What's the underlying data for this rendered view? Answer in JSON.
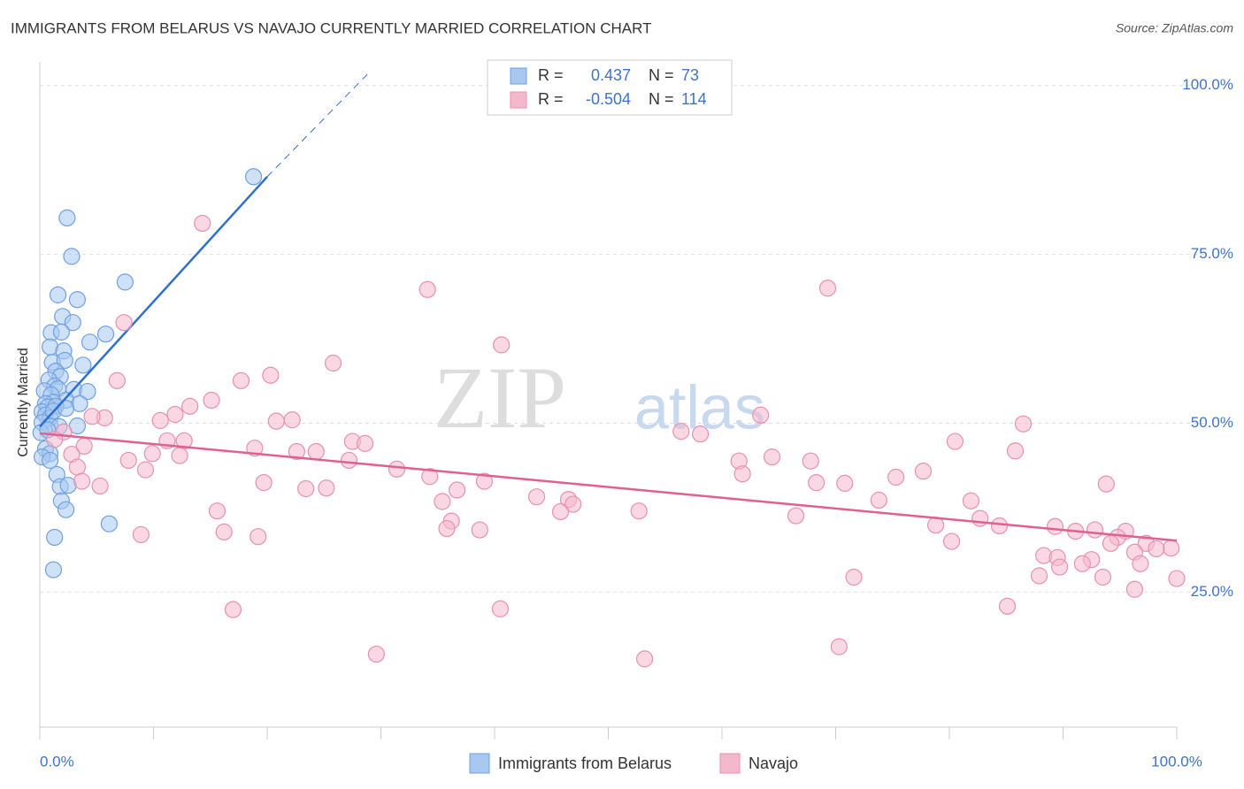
{
  "chart_data": {
    "type": "scatter",
    "title": "IMMIGRANTS FROM BELARUS VS NAVAJO CURRENTLY MARRIED CORRELATION CHART",
    "source": "Source: ZipAtlas.com",
    "watermark": [
      "ZIP",
      "atlas"
    ],
    "y_label": "Currently Married",
    "xlim": [
      0,
      100
    ],
    "ylim": [
      5,
      103.5
    ],
    "xticks": [
      {
        "value": 0,
        "label": "0.0%"
      },
      {
        "value": 100,
        "label": "100.0%"
      }
    ],
    "xminor": [
      10,
      20,
      30,
      40,
      50,
      60,
      70,
      80,
      90
    ],
    "yticks": [
      {
        "value": 25,
        "label": "25.0%"
      },
      {
        "value": 50,
        "label": "50.0%"
      },
      {
        "value": 75,
        "label": "75.0%"
      },
      {
        "value": 100,
        "label": "100.0%"
      }
    ],
    "grid": true,
    "stat_labels": {
      "r": "R =",
      "n": "N ="
    },
    "series": [
      {
        "name": "Immigrants from Belarus",
        "color": "#6fa0e0",
        "fill": "#a8c8f0",
        "line_color": "#2f6fd0",
        "r": 0.437,
        "n": 73,
        "trend": {
          "x": [
            0,
            20
          ],
          "y": [
            49.5,
            86.5
          ]
        },
        "trend_extension": {
          "x": [
            20,
            29
          ],
          "y": [
            86.5,
            102
          ]
        },
        "x": [
          18.8,
          2.4,
          2.8,
          7.5,
          1.6,
          3.3,
          2.0,
          2.9,
          1.0,
          1.9,
          5.8,
          4.4,
          0.9,
          2.1,
          1.1,
          2.2,
          3.8,
          1.4,
          1.8,
          0.8,
          1.3,
          1.6,
          0.4,
          1.0,
          3.0,
          4.2,
          2.3,
          1.2,
          0.5,
          0.7,
          1.4,
          3.5,
          0.2,
          0.5,
          0.9,
          0.2,
          0.9,
          3.3,
          0.1,
          0.5,
          0.9,
          0.2,
          0.9,
          1.5,
          1.8,
          2.5,
          1.9,
          2.3,
          6.1,
          1.3,
          1.2,
          1.7,
          1.2,
          2.3,
          0.7
        ],
        "values": [
          86.5,
          80.4,
          74.7,
          70.9,
          69.0,
          68.3,
          65.8,
          64.9,
          63.4,
          63.5,
          63.2,
          62.0,
          61.3,
          60.7,
          59.0,
          59.3,
          58.6,
          57.7,
          56.9,
          56.4,
          55.5,
          55.1,
          54.8,
          54.2,
          55.0,
          54.7,
          53.4,
          53.1,
          52.9,
          52.4,
          52.5,
          52.9,
          51.7,
          51.2,
          50.8,
          50.1,
          49.6,
          49.6,
          48.6,
          46.2,
          45.5,
          45.0,
          44.5,
          42.4,
          40.6,
          40.8,
          38.5,
          37.2,
          35.1,
          33.1,
          28.3,
          49.5,
          51.8,
          52.2,
          49.0
        ]
      },
      {
        "name": "Navajo",
        "color": "#e890b0",
        "fill": "#f4b8cc",
        "line_color": "#e06090",
        "r": -0.504,
        "n": 114,
        "trend": {
          "x": [
            0,
            100
          ],
          "y": [
            48.5,
            32.6
          ]
        },
        "x": [
          14.3,
          34.1,
          69.3,
          7.4,
          40.6,
          25.8,
          20.3,
          6.8,
          17.7,
          15.1,
          13.2,
          11.9,
          10.6,
          63.4,
          5.7,
          4.6,
          22.2,
          20.8,
          86.5,
          2.1,
          56.4,
          58.1,
          1.3,
          11.2,
          12.7,
          27.5,
          28.6,
          80.5,
          18.9,
          3.9,
          22.6,
          24.3,
          85.8,
          9.9,
          12.3,
          7.8,
          2.8,
          27.2,
          64.4,
          61.5,
          67.8,
          9.3,
          3.3,
          31.4,
          61.8,
          34.3,
          77.7,
          75.3,
          39.1,
          19.7,
          3.7,
          68.3,
          70.8,
          93.8,
          5.3,
          36.7,
          23.4,
          25.2,
          43.7,
          73.8,
          35.4,
          46.5,
          81.9,
          46.9,
          15.6,
          52.7,
          45.8,
          66.5,
          82.7,
          36.2,
          78.8,
          84.4,
          89.3,
          91.1,
          35.8,
          38.7,
          92.8,
          95.5,
          16.2,
          94.8,
          8.9,
          19.2,
          80.2,
          94.2,
          97.3,
          99.5,
          98.2,
          96.3,
          88.3,
          89.5,
          92.5,
          91.7,
          96.8,
          89.7,
          87.9,
          93.5,
          71.6,
          100,
          96.3,
          85.1,
          17.0,
          40.5,
          70.3,
          29.6,
          53.2
        ],
        "values": [
          79.6,
          69.8,
          70.0,
          64.9,
          61.6,
          58.9,
          57.1,
          56.3,
          56.3,
          53.4,
          52.5,
          51.3,
          50.4,
          51.2,
          50.8,
          51.0,
          50.5,
          50.3,
          49.9,
          48.7,
          48.8,
          48.4,
          47.6,
          47.4,
          47.4,
          47.3,
          47.0,
          47.3,
          46.3,
          46.6,
          45.8,
          45.8,
          45.9,
          45.5,
          45.2,
          44.5,
          45.4,
          44.5,
          45.0,
          44.4,
          44.4,
          43.1,
          43.5,
          43.2,
          42.5,
          42.1,
          42.9,
          42.0,
          41.4,
          41.2,
          41.4,
          41.2,
          41.1,
          41.0,
          40.7,
          40.1,
          40.3,
          40.4,
          39.1,
          38.6,
          38.4,
          38.7,
          38.5,
          38.0,
          37.0,
          37.0,
          36.9,
          36.3,
          35.9,
          35.5,
          34.9,
          34.8,
          34.7,
          34.0,
          34.4,
          34.2,
          34.2,
          34.0,
          33.9,
          33.1,
          33.5,
          33.2,
          32.5,
          32.2,
          32.2,
          31.5,
          31.4,
          30.9,
          30.4,
          30.1,
          29.8,
          29.2,
          29.2,
          28.7,
          27.4,
          27.2,
          27.2,
          27.0,
          25.4,
          22.9,
          22.4,
          22.5,
          16.9,
          15.8,
          15.1
        ]
      }
    ]
  }
}
